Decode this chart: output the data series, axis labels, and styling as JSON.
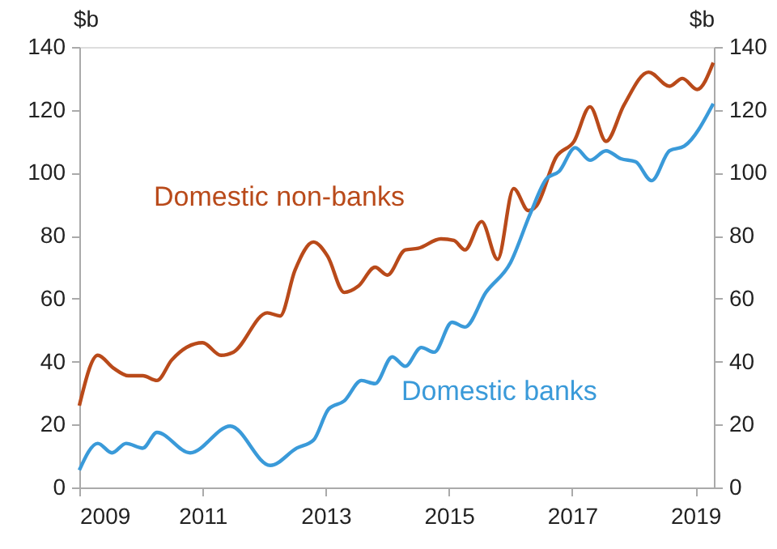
{
  "chart_data": {
    "type": "line",
    "ylabel": "$b",
    "y2label": "$b",
    "xlim": [
      2009,
      2019.3
    ],
    "xticks": [
      2009,
      2011,
      2013,
      2015,
      2017,
      2019
    ],
    "ylim": [
      0,
      140
    ],
    "yticks": [
      0,
      20,
      40,
      60,
      80,
      100,
      120,
      140
    ],
    "y2lim": [
      0,
      140
    ],
    "y2ticks": [
      0,
      20,
      40,
      60,
      80,
      100,
      120,
      140
    ],
    "grid": false,
    "legend": false,
    "marker": "none",
    "line_style": "solid",
    "series": [
      {
        "name": "Domestic non-banks",
        "color": "#b94a1a",
        "x": [
          2009.0,
          2009.3,
          2009.55,
          2009.8,
          2010.03,
          2010.26,
          2010.5,
          2011.0,
          2011.3,
          2011.5,
          2012.05,
          2012.26,
          2012.5,
          2012.8,
          2013.03,
          2013.3,
          2013.53,
          2013.8,
          2014.0,
          2014.29,
          2014.5,
          2014.87,
          2015.08,
          2015.26,
          2015.53,
          2015.79,
          2016.05,
          2016.29,
          2016.42,
          2016.74,
          2017.03,
          2017.29,
          2017.55,
          2017.84,
          2018.24,
          2018.58,
          2018.79,
          2019.03,
          2019.29
        ],
        "values": [
          26,
          42,
          38,
          35.5,
          35.5,
          34,
          40.5,
          46,
          42,
          43,
          55.5,
          54.5,
          69,
          78,
          73.5,
          62,
          64,
          70,
          67.5,
          75.5,
          76,
          79,
          78.5,
          75.5,
          84.5,
          72.5,
          95,
          88,
          89.5,
          105,
          110,
          121,
          110,
          121.5,
          132,
          127.5,
          130,
          126.5,
          135
        ]
      },
      {
        "name": "Domestic banks",
        "color": "#3a9ad9",
        "x": [
          2009.0,
          2009.3,
          2009.53,
          2009.76,
          2010.03,
          2010.26,
          2010.8,
          2011.45,
          2012.1,
          2012.53,
          2012.8,
          2013.05,
          2013.3,
          2013.58,
          2013.8,
          2014.08,
          2014.29,
          2014.55,
          2014.76,
          2015.05,
          2015.26,
          2015.6,
          2016.0,
          2016.32,
          2016.58,
          2016.79,
          2017.05,
          2017.29,
          2017.55,
          2017.79,
          2018.03,
          2018.29,
          2018.58,
          2018.82,
          2019.29
        ],
        "values": [
          5.5,
          14,
          11,
          14,
          12.5,
          17.5,
          11,
          19.5,
          7,
          12.5,
          15,
          25,
          27.5,
          34,
          33,
          41.5,
          38.5,
          44.5,
          43,
          52.5,
          51,
          62,
          71.5,
          87,
          98,
          100.5,
          108,
          104,
          107,
          104.5,
          103.5,
          97.5,
          107,
          108.5,
          122
        ]
      }
    ]
  }
}
